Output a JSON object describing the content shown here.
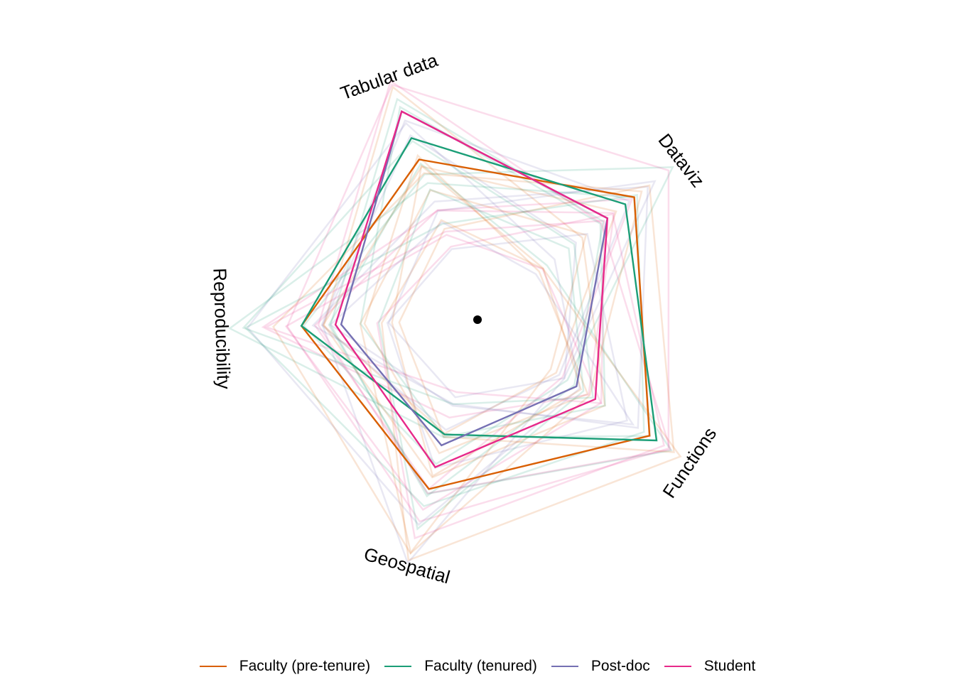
{
  "chart_data": {
    "type": "radar",
    "axes": [
      "Tabular data",
      "Dataviz",
      "Functions",
      "Geospatial",
      "Reproducibility"
    ],
    "rmax": 5,
    "background_lines": {
      "count": 30,
      "opacity": 0.16
    },
    "series": [
      {
        "name": "Faculty (pre-tenure)",
        "color": "#D95F02",
        "values": [
          3.0,
          3.5,
          3.65,
          3.1,
          3.1
        ]
      },
      {
        "name": "Faculty (tenured)",
        "color": "#1B9E77",
        "values": [
          3.4,
          3.3,
          3.8,
          2.1,
          3.1
        ]
      },
      {
        "name": "Post-doc",
        "color": "#7570B3",
        "values": [
          3.9,
          2.9,
          2.1,
          2.3,
          2.4
        ]
      },
      {
        "name": "Student",
        "color": "#E7298A",
        "values": [
          3.9,
          2.9,
          2.5,
          2.7,
          2.5
        ]
      }
    ],
    "legend_position": "bottom"
  }
}
